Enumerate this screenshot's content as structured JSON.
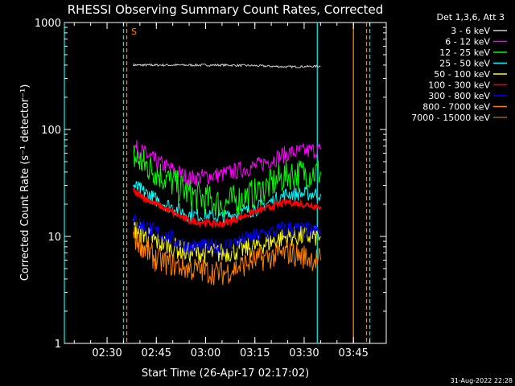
{
  "colors": {
    "background": "#000000",
    "axes": "#ffffff",
    "attenuator_marker": "#00e5e5",
    "saa_marker": "#ff8000",
    "flag_line": "#ff8000"
  },
  "chart_data": {
    "type": "line",
    "title": "RHESSI Observing Summary Count Rates, Corrected",
    "xlabel": "Start Time (26-Apr-17 02:17:02)",
    "ylabel": "Corrected Count Rate (s⁻¹ detector⁻¹)",
    "yscale": "log",
    "ylim": [
      1,
      1000
    ],
    "xlim": [
      "02:17",
      "03:55"
    ],
    "x_ticks": [
      "02:30",
      "02:45",
      "03:00",
      "03:15",
      "03:30",
      "03:45"
    ],
    "y_ticks": [
      "1",
      "10",
      "100",
      "1000"
    ],
    "grid": false,
    "legend_title": "Det 1,3,6, Att 3",
    "legend_position": "top-right",
    "footer": "31-Aug-2022 22:28",
    "flag_label": "S",
    "vertical_markers": [
      {
        "time": "02:17",
        "color": "#00e5e5",
        "style": "solid"
      },
      {
        "time": "02:35",
        "color": "#00e5e5",
        "style": "dashed"
      },
      {
        "time": "02:36",
        "color": "#ff8000",
        "style": "dashed"
      },
      {
        "time": "03:34",
        "color": "#00e5e5",
        "style": "solid"
      },
      {
        "time": "03:45",
        "color": "#ff8000",
        "style": "solid"
      },
      {
        "time": "03:49",
        "color": "#ff8000",
        "style": "dashed"
      },
      {
        "time": "03:50",
        "color": "#00e5e5",
        "style": "dashed"
      }
    ],
    "series": [
      {
        "name": "3 - 6 keV",
        "color": "#d0d0d0",
        "x": [
          "02:38",
          "02:45",
          "02:55",
          "03:05",
          "03:15",
          "03:25",
          "03:35"
        ],
        "values": [
          400,
          400,
          400,
          400,
          395,
          385,
          390
        ]
      },
      {
        "name": "6 - 12 keV",
        "color": "#ff00ff",
        "x": [
          "02:38",
          "02:45",
          "02:55",
          "03:05",
          "03:15",
          "03:25",
          "03:35"
        ],
        "values": [
          70,
          50,
          35,
          38,
          45,
          60,
          65
        ]
      },
      {
        "name": "12 - 25 keV",
        "color": "#00ff00",
        "x": [
          "02:38",
          "02:45",
          "02:55",
          "03:05",
          "03:15",
          "03:25",
          "03:35"
        ],
        "values": [
          55,
          40,
          25,
          20,
          25,
          38,
          40
        ]
      },
      {
        "name": "25 - 50 keV",
        "color": "#00ffff",
        "x": [
          "02:38",
          "02:45",
          "02:55",
          "03:05",
          "03:15",
          "03:25",
          "03:35"
        ],
        "values": [
          30,
          22,
          16,
          15,
          18,
          25,
          25
        ]
      },
      {
        "name": "50 - 100 keV",
        "color": "#ffff00",
        "x": [
          "02:38",
          "02:45",
          "02:55",
          "03:05",
          "03:15",
          "03:25",
          "03:35"
        ],
        "values": [
          12,
          9,
          7,
          7,
          8,
          10,
          10
        ]
      },
      {
        "name": "100 - 300 keV",
        "color": "#ff0000",
        "x": [
          "02:38",
          "02:45",
          "02:55",
          "03:05",
          "03:15",
          "03:25",
          "03:35"
        ],
        "values": [
          26,
          20,
          14,
          13,
          17,
          21,
          19
        ]
      },
      {
        "name": "300 - 800 keV",
        "color": "#0000ff",
        "x": [
          "02:38",
          "02:45",
          "02:55",
          "03:05",
          "03:15",
          "03:25",
          "03:35"
        ],
        "values": [
          14,
          11,
          8,
          8,
          10,
          12,
          11
        ]
      },
      {
        "name": "800 - 7000 keV",
        "color": "#ff8000",
        "x": [
          "02:38",
          "02:45",
          "02:55",
          "03:05",
          "03:15",
          "03:25",
          "03:35"
        ],
        "values": [
          10,
          6,
          5,
          4.5,
          6,
          7,
          6
        ]
      },
      {
        "name": "7000 - 15000 keV",
        "color": "#8b6914",
        "x": [],
        "values": []
      }
    ]
  }
}
